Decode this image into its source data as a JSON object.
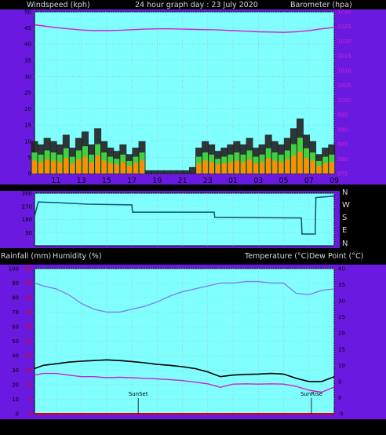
{
  "header": {
    "left_label": "Windspeed (kph)",
    "center_label": "24 hour graph day : 23 July 2020",
    "right_label": "Barometer (hpa)"
  },
  "compass": {
    "labels": [
      "N",
      "W",
      "S",
      "E",
      "N"
    ]
  },
  "lower_header": {
    "rain": "Rainfall (mm)",
    "humidity": "Humidity (%)",
    "temp": "Temperature (°C)",
    "dew": "Dew Point (°C)"
  },
  "annotations": {
    "sunset": "SunSet",
    "sunrise": "SunRise"
  },
  "colors": {
    "panel_bg": "#80ffff",
    "frame": "#6a1ae0",
    "grid": "#b0b0b0",
    "wind_gust": "#000000",
    "wind_avg_fill": "#ff8c00",
    "wind_green": "#40d040",
    "barometer": "#d020d0",
    "direction": "#1a5a7a",
    "humidity": "#8080f0",
    "temperature": "#000000",
    "dewpoint": "#d020d0",
    "rain_axis": "#e00000"
  },
  "chart_data": [
    {
      "type": "bar",
      "name": "wind_barometer",
      "x_tick_labels": [
        "11",
        "13",
        "15",
        "17",
        "19",
        "21",
        "23",
        "01",
        "03",
        "05",
        "07",
        "09"
      ],
      "left_axis": {
        "label": "Windspeed (kph)",
        "ylim": [
          0,
          50
        ],
        "ticks": [
          0,
          5,
          10,
          15,
          20,
          25,
          30,
          35,
          40,
          45,
          50
        ]
      },
      "right_axis": {
        "label": "Barometer (hpa)",
        "ylim": [
          975,
          1030
        ],
        "ticks": [
          975,
          980,
          985,
          990,
          995,
          1000,
          1005,
          1010,
          1015,
          1020,
          1025,
          1030
        ]
      },
      "series": [
        {
          "name": "Barometer (hpa)",
          "kind": "line",
          "x": [
            9.3,
            10,
            11,
            12,
            13,
            14,
            15,
            16,
            17,
            18,
            19,
            20,
            21,
            22,
            23,
            24,
            25,
            26,
            27,
            28,
            29,
            30,
            31,
            32,
            33
          ],
          "values": [
            1025.6,
            1025.2,
            1024.6,
            1024.2,
            1023.8,
            1023.6,
            1023.6,
            1023.7,
            1023.9,
            1024.1,
            1024.2,
            1024.2,
            1024.1,
            1024.0,
            1023.9,
            1023.8,
            1023.6,
            1023.4,
            1023.2,
            1023.1,
            1023.0,
            1023.2,
            1023.6,
            1024.2,
            1024.7
          ]
        },
        {
          "name": "Wind gust (kph)",
          "kind": "bars",
          "x": [
            9.3,
            9.8,
            10.3,
            10.8,
            11.3,
            11.8,
            12.3,
            12.8,
            13.3,
            13.8,
            14.3,
            14.8,
            15.3,
            15.8,
            16.3,
            16.8,
            17.3,
            17.8,
            18.3,
            18.8,
            19.3,
            19.8,
            20.3,
            20.8,
            21.3,
            21.8,
            22.3,
            22.8,
            23.3,
            23.8,
            24.3,
            24.8,
            25.3,
            25.8,
            26.3,
            26.8,
            27.3,
            27.8,
            28.3,
            28.8,
            29.3,
            29.8,
            30.3,
            30.8,
            31.3,
            31.8,
            32.3,
            32.8
          ],
          "values": [
            10,
            9,
            11,
            10,
            9,
            12,
            8,
            11,
            13,
            9,
            14,
            10,
            8,
            7,
            9,
            6,
            8,
            10,
            1,
            1,
            1,
            1,
            1,
            1,
            1,
            2,
            8,
            10,
            9,
            7,
            8,
            9,
            10,
            9,
            11,
            8,
            9,
            12,
            10,
            9,
            11,
            14,
            17,
            12,
            10,
            6,
            8,
            9
          ]
        }
      ]
    },
    {
      "type": "line",
      "name": "wind_direction",
      "y_tick_labels": [
        "360",
        "270",
        "180",
        "90"
      ],
      "compass_labels": [
        "N",
        "W",
        "S",
        "E",
        "N"
      ],
      "series": [
        {
          "name": "Wind direction",
          "x": [
            9.3,
            9.6,
            11,
            13.5,
            17,
            17.05,
            23.5,
            23.55,
            30.4,
            30.45,
            31.5,
            31.55,
            33
          ],
          "values": [
            200,
            300,
            295,
            285,
            280,
            230,
            230,
            195,
            190,
            80,
            80,
            330,
            340
          ]
        }
      ]
    },
    {
      "type": "line",
      "name": "rain_humidity_temperature",
      "x_tick_labels": [
        "11",
        "13",
        "15",
        "17",
        "19",
        "21",
        "23",
        "01",
        "03",
        "05",
        "07",
        "09"
      ],
      "left_axis": {
        "label": "Humidity (%)",
        "ylim": [
          0,
          100
        ],
        "ticks": [
          0,
          10,
          20,
          30,
          40,
          50,
          60,
          70,
          80,
          90,
          100
        ]
      },
      "rain_axis": {
        "label": "Rainfall (mm)",
        "ylim": [
          0,
          50
        ],
        "ticks": [
          0,
          5,
          10,
          15,
          20,
          25,
          30,
          35,
          40,
          45,
          50
        ]
      },
      "right_axis": {
        "label": "Temperature (°C)",
        "ylim": [
          -5,
          40
        ],
        "ticks": [
          -5,
          0,
          5,
          10,
          15,
          20,
          25,
          30,
          35,
          40
        ]
      },
      "series": [
        {
          "name": "Humidity (%)",
          "x": [
            9.3,
            10,
            11,
            12,
            13,
            14,
            15,
            16,
            17,
            18,
            19,
            20,
            21,
            22,
            23,
            24,
            25,
            26,
            27,
            28,
            29,
            30,
            31,
            32,
            33
          ],
          "values": [
            90,
            88,
            86,
            82,
            76,
            72,
            70,
            70,
            72,
            74,
            77,
            81,
            84,
            86,
            88,
            90,
            90,
            91,
            91,
            90,
            90,
            83,
            82,
            85,
            86
          ]
        },
        {
          "name": "Temperature (°C)",
          "x": [
            9.3,
            10,
            11,
            12,
            13,
            14,
            15,
            16,
            17,
            18,
            19,
            20,
            21,
            22,
            23,
            24,
            25,
            26,
            27,
            28,
            29,
            30,
            31,
            32,
            33
          ],
          "values": [
            9,
            10,
            10.5,
            11,
            11.3,
            11.5,
            11.7,
            11.5,
            11.2,
            10.8,
            10.3,
            10,
            9.6,
            9,
            8,
            6.5,
            7,
            7.2,
            7.3,
            7.5,
            7.3,
            6,
            5,
            5,
            6.5
          ]
        },
        {
          "name": "Dew Point (°C)",
          "x": [
            9.3,
            10,
            11,
            12,
            13,
            14,
            15,
            16,
            17,
            18,
            19,
            20,
            21,
            22,
            23,
            24,
            25,
            26,
            27,
            28,
            29,
            30,
            31,
            32,
            33
          ],
          "values": [
            7,
            7.5,
            7.5,
            7,
            6.5,
            6.5,
            6.2,
            6.3,
            6.2,
            6,
            5.8,
            5.6,
            5.3,
            4.8,
            4.3,
            3.2,
            4.2,
            4.3,
            4.2,
            4.3,
            4.2,
            3.5,
            2.3,
            1.7,
            3.3
          ]
        },
        {
          "name": "Rainfall (mm)",
          "x": [
            9.3,
            33
          ],
          "values": [
            0,
            0
          ]
        }
      ],
      "markers": [
        {
          "label": "SunSet",
          "x": 17.5
        },
        {
          "label": "SunRise",
          "x": 31.2
        }
      ]
    }
  ]
}
